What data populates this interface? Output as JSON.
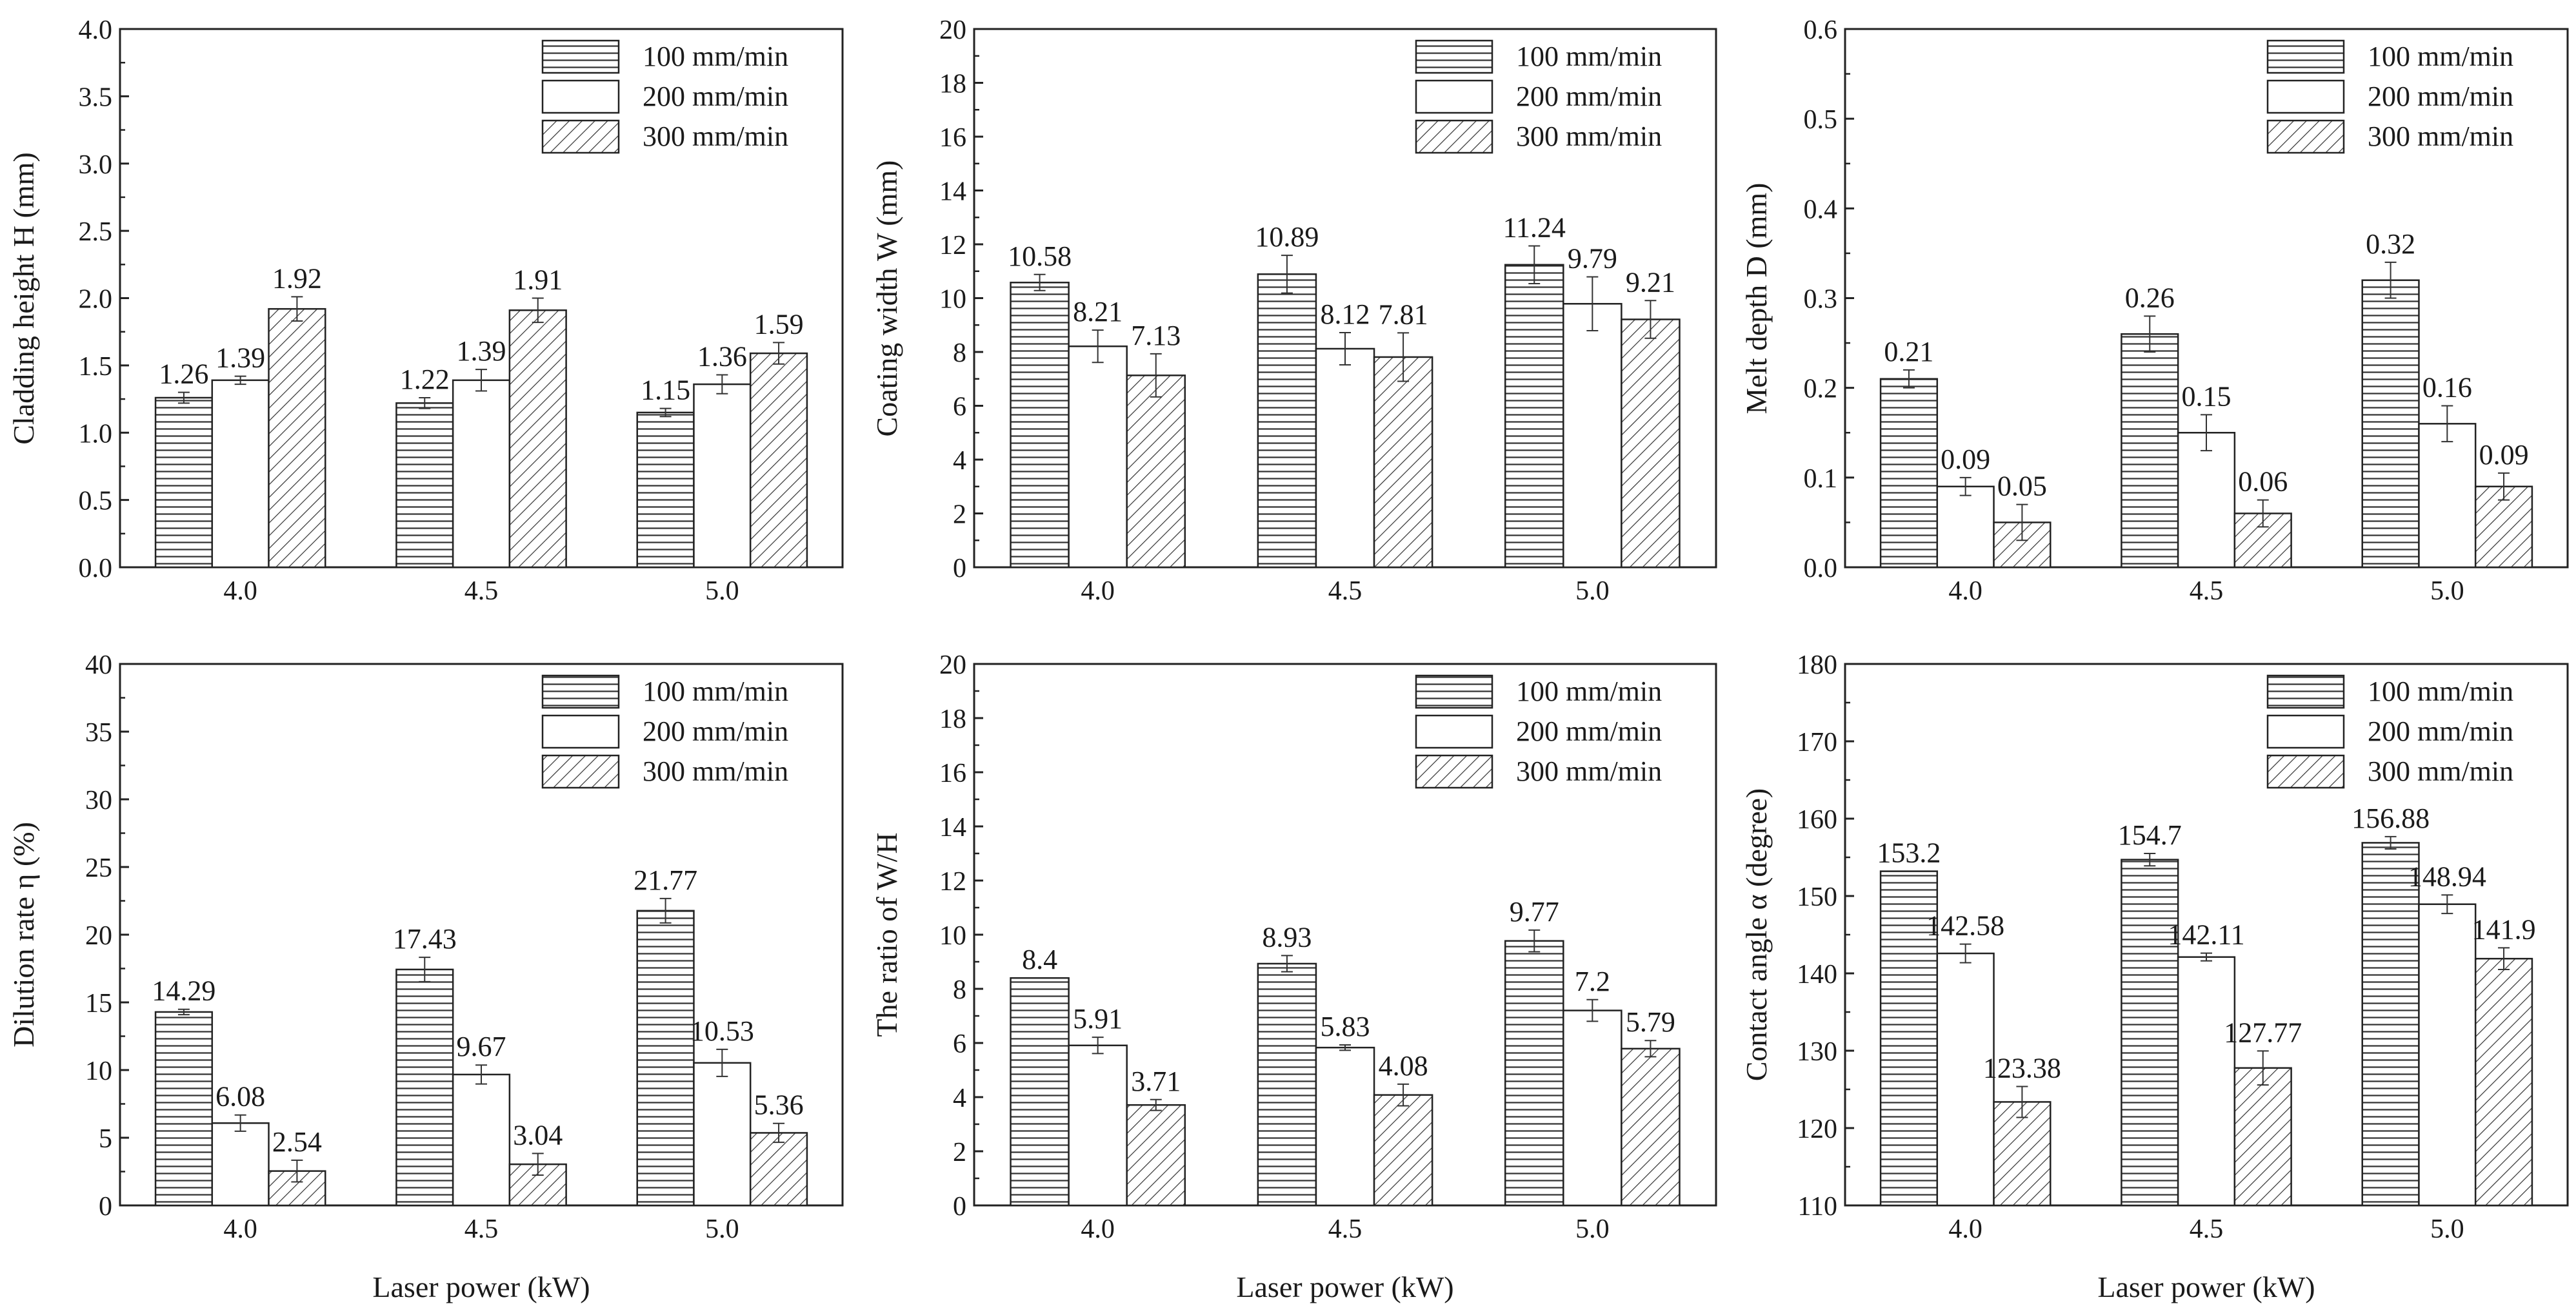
{
  "figure": {
    "xlabel_common": "Laser power (kW)"
  },
  "chart_data": [
    {
      "type": "bar",
      "title": "",
      "categories": [
        "4.0",
        "4.5",
        "5.0"
      ],
      "xlabel": "",
      "ylabel": "Cladding height H (mm)",
      "ylim": [
        0,
        4.0
      ],
      "yticks": [
        "0.0",
        "0.5",
        "1.0",
        "1.5",
        "2.0",
        "2.5",
        "3.0",
        "3.5",
        "4.0"
      ],
      "legend": [
        "100 mm/min",
        "200 mm/min",
        "300 mm/min"
      ],
      "series": [
        {
          "name": "100 mm/min",
          "values": [
            1.26,
            1.22,
            1.15
          ],
          "labels": [
            "1.26",
            "1.22",
            "1.15"
          ],
          "errors": [
            0.04,
            0.04,
            0.03
          ]
        },
        {
          "name": "200 mm/min",
          "values": [
            1.39,
            1.39,
            1.36
          ],
          "labels": [
            "1.39",
            "1.39",
            "1.36"
          ],
          "errors": [
            0.03,
            0.08,
            0.07
          ]
        },
        {
          "name": "300 mm/min",
          "values": [
            1.92,
            1.91,
            1.59
          ],
          "labels": [
            "1.92",
            "1.91",
            "1.59"
          ],
          "errors": [
            0.09,
            0.09,
            0.08
          ]
        }
      ]
    },
    {
      "type": "bar",
      "title": "",
      "categories": [
        "4.0",
        "4.5",
        "5.0"
      ],
      "xlabel": "",
      "ylabel": "Coating width W (mm)",
      "ylim": [
        0,
        20
      ],
      "yticks": [
        "0",
        "2",
        "4",
        "6",
        "8",
        "10",
        "12",
        "14",
        "16",
        "18",
        "20"
      ],
      "legend": [
        "100 mm/min",
        "200 mm/min",
        "300 mm/min"
      ],
      "series": [
        {
          "name": "100 mm/min",
          "values": [
            10.58,
            10.89,
            11.24
          ],
          "labels": [
            "10.58",
            "10.89",
            "11.24"
          ],
          "errors": [
            0.3,
            0.7,
            0.7
          ]
        },
        {
          "name": "200 mm/min",
          "values": [
            8.21,
            8.12,
            9.79
          ],
          "labels": [
            "8.21",
            "8.12",
            "9.79"
          ],
          "errors": [
            0.6,
            0.6,
            1.0
          ]
        },
        {
          "name": "300 mm/min",
          "values": [
            7.13,
            7.81,
            9.21
          ],
          "labels": [
            "7.13",
            "7.81",
            "9.21"
          ],
          "errors": [
            0.8,
            0.9,
            0.7
          ]
        }
      ]
    },
    {
      "type": "bar",
      "title": "",
      "categories": [
        "4.0",
        "4.5",
        "5.0"
      ],
      "xlabel": "",
      "ylabel": "Melt depth D (mm)",
      "ylim": [
        0,
        0.6
      ],
      "yticks": [
        "0.0",
        "0.1",
        "0.2",
        "0.3",
        "0.4",
        "0.5",
        "0.6"
      ],
      "legend": [
        "100 mm/min",
        "200 mm/min",
        "300 mm/min"
      ],
      "series": [
        {
          "name": "100 mm/min",
          "values": [
            0.21,
            0.26,
            0.32
          ],
          "labels": [
            "0.21",
            "0.26",
            "0.32"
          ],
          "errors": [
            0.01,
            0.02,
            0.02
          ]
        },
        {
          "name": "200 mm/min",
          "values": [
            0.09,
            0.15,
            0.16
          ],
          "labels": [
            "0.09",
            "0.15",
            "0.16"
          ],
          "errors": [
            0.01,
            0.02,
            0.02
          ]
        },
        {
          "name": "300 mm/min",
          "values": [
            0.05,
            0.06,
            0.09
          ],
          "labels": [
            "0.05",
            "0.06",
            "0.09"
          ],
          "errors": [
            0.02,
            0.015,
            0.015
          ]
        }
      ]
    },
    {
      "type": "bar",
      "title": "",
      "categories": [
        "4.0",
        "4.5",
        "5.0"
      ],
      "xlabel": "Laser power (kW)",
      "ylabel": "Dilution rate η (%)",
      "ylim": [
        0,
        40
      ],
      "yticks": [
        "0",
        "5",
        "10",
        "15",
        "20",
        "25",
        "30",
        "35",
        "40"
      ],
      "legend": [
        "100 mm/min",
        "200 mm/min",
        "300 mm/min"
      ],
      "series": [
        {
          "name": "100 mm/min",
          "values": [
            14.29,
            17.43,
            21.77
          ],
          "labels": [
            "14.29",
            "17.43",
            "21.77"
          ],
          "errors": [
            0.2,
            0.9,
            0.9
          ]
        },
        {
          "name": "200 mm/min",
          "values": [
            6.08,
            9.67,
            10.53
          ],
          "labels": [
            "6.08",
            "9.67",
            "10.53"
          ],
          "errors": [
            0.6,
            0.7,
            1.0
          ]
        },
        {
          "name": "300 mm/min",
          "values": [
            2.54,
            3.04,
            5.36
          ],
          "labels": [
            "2.54",
            "3.04",
            "5.36"
          ],
          "errors": [
            0.8,
            0.8,
            0.7
          ]
        }
      ]
    },
    {
      "type": "bar",
      "title": "",
      "categories": [
        "4.0",
        "4.5",
        "5.0"
      ],
      "xlabel": "Laser power (kW)",
      "ylabel": "The ratio of W/H",
      "ylim": [
        0,
        20
      ],
      "yticks": [
        "0",
        "2",
        "4",
        "6",
        "8",
        "10",
        "12",
        "14",
        "16",
        "18",
        "20"
      ],
      "legend": [
        "100 mm/min",
        "200 mm/min",
        "300 mm/min"
      ],
      "series": [
        {
          "name": "100 mm/min",
          "values": [
            8.4,
            8.93,
            9.77
          ],
          "labels": [
            "8.4",
            "8.93",
            "9.77"
          ],
          "errors": [
            0.0,
            0.3,
            0.4
          ]
        },
        {
          "name": "200 mm/min",
          "values": [
            5.91,
            5.83,
            7.2
          ],
          "labels": [
            "5.91",
            "5.83",
            "7.2"
          ],
          "errors": [
            0.3,
            0.1,
            0.4
          ]
        },
        {
          "name": "300 mm/min",
          "values": [
            3.71,
            4.08,
            5.79
          ],
          "labels": [
            "3.71",
            "4.08",
            "5.79"
          ],
          "errors": [
            0.2,
            0.4,
            0.3
          ]
        }
      ]
    },
    {
      "type": "bar",
      "title": "",
      "categories": [
        "4.0",
        "4.5",
        "5.0"
      ],
      "xlabel": "Laser power (kW)",
      "ylabel": "Contact angle α (degree)",
      "ylim": [
        110,
        180
      ],
      "yticks": [
        "110",
        "120",
        "130",
        "140",
        "150",
        "160",
        "170",
        "180"
      ],
      "legend": [
        "100 mm/min",
        "200 mm/min",
        "300 mm/min"
      ],
      "series": [
        {
          "name": "100 mm/min",
          "values": [
            153.2,
            154.7,
            156.88
          ],
          "labels": [
            "153.2",
            "154.7",
            "156.88"
          ],
          "errors": [
            0.0,
            0.8,
            0.8
          ]
        },
        {
          "name": "200 mm/min",
          "values": [
            142.58,
            142.11,
            148.94
          ],
          "labels": [
            "142.58",
            "142.11",
            "148.94"
          ],
          "errors": [
            1.2,
            0.5,
            1.2
          ]
        },
        {
          "name": "300 mm/min",
          "values": [
            123.38,
            127.77,
            141.9
          ],
          "labels": [
            "123.38",
            "127.77",
            "141.9"
          ],
          "errors": [
            2.0,
            2.2,
            1.4
          ]
        }
      ]
    }
  ]
}
